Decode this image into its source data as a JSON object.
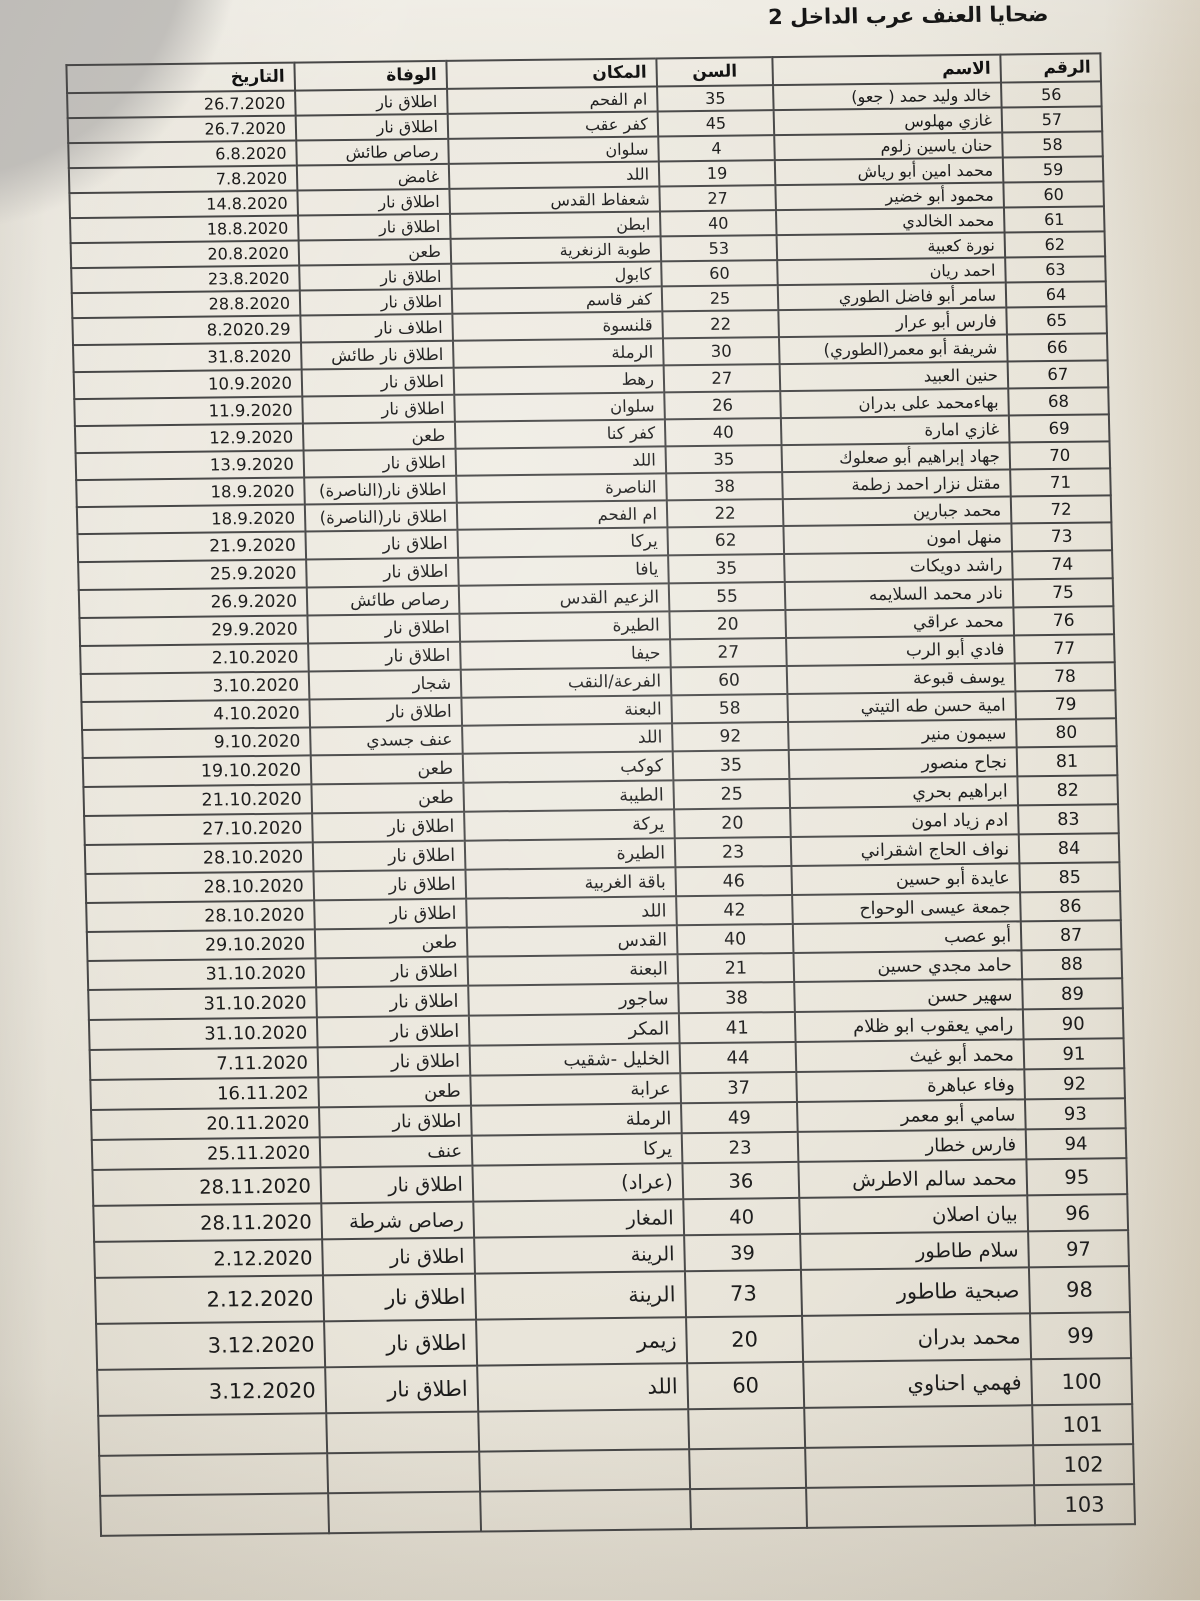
{
  "page": {
    "title": "ضحايا العنف عرب الداخل 2"
  },
  "table": {
    "headers": {
      "num": "الرقم",
      "name": "الاسم",
      "age": "السن",
      "place": "المكان",
      "death": "الوفاة",
      "date": "التاريخ"
    },
    "rows": [
      {
        "num": "56",
        "name": "خالد وليد حمد ( جعو)",
        "age": "35",
        "place": "ام الفحم",
        "death": "اطلاق نار",
        "date": "26.7.2020"
      },
      {
        "num": "57",
        "name": "غازي مهلوس",
        "age": "45",
        "place": "كفر عقب",
        "death": "اطلاق نار",
        "date": "26.7.2020"
      },
      {
        "num": "58",
        "name": "حنان ياسين زلوم",
        "age": "4",
        "place": "سلوان",
        "death": "رصاص طائش",
        "date": "6.8.2020"
      },
      {
        "num": "59",
        "name": "محمد امين أبو رياش",
        "age": "19",
        "place": "اللد",
        "death": "غامض",
        "date": "7.8.2020"
      },
      {
        "num": "60",
        "name": "محمود أبو خضير",
        "age": "27",
        "place": "شعفاط القدس",
        "death": "اطلاق نار",
        "date": "14.8.2020"
      },
      {
        "num": "61",
        "name": "محمد الخالدي",
        "age": "40",
        "place": "ابطن",
        "death": "اطلاق نار",
        "date": "18.8.2020"
      },
      {
        "num": "62",
        "name": "نورة كعبية",
        "age": "53",
        "place": "طوبة الزنغرية",
        "death": "طعن",
        "date": "20.8.2020"
      },
      {
        "num": "63",
        "name": "احمد ريان",
        "age": "60",
        "place": "كابول",
        "death": "اطلاق نار",
        "date": "23.8.2020"
      },
      {
        "num": "64",
        "name": "سامر أبو فاضل الطوري",
        "age": "25",
        "place": "كفر قاسم",
        "death": "اطلاق نار",
        "date": "28.8.2020"
      },
      {
        "num": "65",
        "name": "فارس أبو عرار",
        "age": "22",
        "place": "قلنسوة",
        "death": "اطلاف نار",
        "date": "8.2020.29"
      },
      {
        "num": "66",
        "name": "شريفة أبو معمر(الطوري)",
        "age": "30",
        "place": "الرملة",
        "death": "اطلاق نار طائش",
        "date": "31.8.2020"
      },
      {
        "num": "67",
        "name": "حنين العبيد",
        "age": "27",
        "place": "رهط",
        "death": "اطلاق نار",
        "date": "10.9.2020"
      },
      {
        "num": "68",
        "name": "بهاءمحمد على بدران",
        "age": "26",
        "place": "سلوان",
        "death": "اطلاق نار",
        "date": "11.9.2020"
      },
      {
        "num": "69",
        "name": "غازي امارة",
        "age": "40",
        "place": "كفر كنا",
        "death": "طعن",
        "date": "12.9.2020"
      },
      {
        "num": "70",
        "name": "جهاد إبراهيم أبو صعلوك",
        "age": "35",
        "place": "اللد",
        "death": "اطلاق نار",
        "date": "13.9.2020"
      },
      {
        "num": "71",
        "name": "مقتل نزار احمد زطمة",
        "age": "38",
        "place": "الناصرة",
        "death": "اطلاق نار(الناصرة)",
        "date": "18.9.2020"
      },
      {
        "num": "72",
        "name": "محمد جبارين",
        "age": "22",
        "place": "ام الفحم",
        "death": "اطلاق نار(الناصرة)",
        "date": "18.9.2020"
      },
      {
        "num": "73",
        "name": "منهل امون",
        "age": "62",
        "place": "يركا",
        "death": "اطلاق نار",
        "date": "21.9.2020"
      },
      {
        "num": "74",
        "name": "راشد دويكات",
        "age": "35",
        "place": "يافا",
        "death": "اطلاق نار",
        "date": "25.9.2020"
      },
      {
        "num": "75",
        "name": "نادر محمد السلايمه",
        "age": "55",
        "place": "الزعيم القدس",
        "death": "رصاص طائش",
        "date": "26.9.2020"
      },
      {
        "num": "76",
        "name": "محمد عراقي",
        "age": "20",
        "place": "الطيرة",
        "death": "اطلاق نار",
        "date": "29.9.2020"
      },
      {
        "num": "77",
        "name": "فادي أبو الرب",
        "age": "27",
        "place": "حيفا",
        "death": "اطلاق نار",
        "date": "2.10.2020"
      },
      {
        "num": "78",
        "name": "يوسف قبوعة",
        "age": "60",
        "place": "الفرعة/النقب",
        "death": "شجار",
        "date": "3.10.2020"
      },
      {
        "num": "79",
        "name": "امية حسن طه التيتي",
        "age": "58",
        "place": "البعنة",
        "death": "اطلاق نار",
        "date": "4.10.2020"
      },
      {
        "num": "80",
        "name": "سيمون منير",
        "age": "92",
        "place": "اللد",
        "death": "عنف جسدي",
        "date": "9.10.2020"
      },
      {
        "num": "81",
        "name": "نجاح منصور",
        "age": "35",
        "place": "كوكب",
        "death": "طعن",
        "date": "19.10.2020"
      },
      {
        "num": "82",
        "name": "ابراهيم بحري",
        "age": "25",
        "place": "الطيبة",
        "death": "طعن",
        "date": "21.10.2020"
      },
      {
        "num": "83",
        "name": "ادم زياد امون",
        "age": "20",
        "place": "يركة",
        "death": "اطلاق نار",
        "date": "27.10.2020"
      },
      {
        "num": "84",
        "name": "نواف الحاج اشقراني",
        "age": "23",
        "place": "الطيرة",
        "death": "اطلاق نار",
        "date": "28.10.2020"
      },
      {
        "num": "85",
        "name": "عايدة أبو حسين",
        "age": "46",
        "place": "باقة الغربية",
        "death": "اطلاق نار",
        "date": "28.10.2020"
      },
      {
        "num": "86",
        "name": "جمعة عيسى الوحواح",
        "age": "42",
        "place": "اللد",
        "death": "اطلاق نار",
        "date": "28.10.2020"
      },
      {
        "num": "87",
        "name": "أبو عصب",
        "age": "40",
        "place": "القدس",
        "death": "طعن",
        "date": "29.10.2020"
      },
      {
        "num": "88",
        "name": "حامد مجدي حسين",
        "age": "21",
        "place": "البعنة",
        "death": "اطلاق نار",
        "date": "31.10.2020"
      },
      {
        "num": "89",
        "name": "سهير حسن",
        "age": "38",
        "place": "ساجور",
        "death": "اطلاق نار",
        "date": "31.10.2020"
      },
      {
        "num": "90",
        "name": "رامي يعقوب ابو ظلام",
        "age": "41",
        "place": "المكر",
        "death": "اطلاق نار",
        "date": "31.10.2020"
      },
      {
        "num": "91",
        "name": "محمد أبو غيث",
        "age": "44",
        "place": "الخليل -شقيب",
        "death": "اطلاق نار",
        "date": "7.11.2020"
      },
      {
        "num": "92",
        "name": "وفاء عباهرة",
        "age": "37",
        "place": "عرابة",
        "death": "طعن",
        "date": "16.11.202"
      },
      {
        "num": "93",
        "name": "سامي أبو معمر",
        "age": "49",
        "place": "الرملة",
        "death": "اطلاق نار",
        "date": "20.11.2020"
      },
      {
        "num": "94",
        "name": "فارس خطار",
        "age": "23",
        "place": "يركا",
        "death": "عنف",
        "date": "25.11.2020"
      },
      {
        "num": "95",
        "name": "محمد سالم الاطرش",
        "age": "36",
        "place": "(عراد)",
        "death": "اطلاق نار",
        "date": "28.11.2020"
      },
      {
        "num": "96",
        "name": "بيان اصلان",
        "age": "40",
        "place": "المغار",
        "death": "رصاص شرطة",
        "date": "28.11.2020"
      },
      {
        "num": "97",
        "name": "سلام طاطور",
        "age": "39",
        "place": "الرينة",
        "death": "اطلاق نار",
        "date": "2.12.2020"
      },
      {
        "num": "98",
        "name": "صبحية طاطور",
        "age": "73",
        "place": "الرينة",
        "death": "اطلاق نار",
        "date": "2.12.2020"
      },
      {
        "num": "99",
        "name": "محمد بدران",
        "age": "20",
        "place": "زيمر",
        "death": "اطلاق نار",
        "date": "3.12.2020"
      },
      {
        "num": "100",
        "name": "فهمي احناوي",
        "age": "60",
        "place": "اللد",
        "death": "اطلاق نار",
        "date": "3.12.2020"
      },
      {
        "num": "101",
        "name": "",
        "age": "",
        "place": "",
        "death": "",
        "date": ""
      },
      {
        "num": "102",
        "name": "",
        "age": "",
        "place": "",
        "death": "",
        "date": ""
      },
      {
        "num": "103",
        "name": "",
        "age": "",
        "place": "",
        "death": "",
        "date": ""
      }
    ]
  }
}
